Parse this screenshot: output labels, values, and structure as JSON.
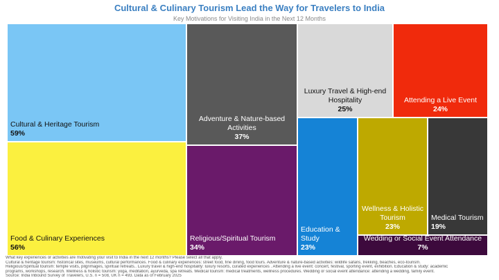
{
  "chart_data": {
    "type": "treemap",
    "title": "Cultural & Culinary Tourism Lead the Way for Travelers to India",
    "subtitle": "Key Motivations for Visiting India in the Next 12 Months",
    "items": [
      {
        "name": "Cultural & Heritage Tourism",
        "value": 59,
        "label": "59%",
        "color": "#7ac6f5",
        "text_color": "#111111"
      },
      {
        "name": "Food & Culinary Experiences",
        "value": 56,
        "label": "56%",
        "color": "#fbf03f",
        "text_color": "#111111"
      },
      {
        "name": "Adventure & Nature-based Activities",
        "value": 37,
        "label": "37%",
        "color": "#595959",
        "text_color": "#ffffff"
      },
      {
        "name": "Religious/Spiritual Tourism",
        "value": 34,
        "label": "34%",
        "color": "#6a1a6a",
        "text_color": "#ffffff"
      },
      {
        "name": "Luxury Travel & High-end Hospitality",
        "value": 25,
        "label": "25%",
        "color": "#d9d9d9",
        "text_color": "#111111"
      },
      {
        "name": "Attending a Live Event",
        "value": 24,
        "label": "24%",
        "color": "#f02a0c",
        "text_color": "#ffffff"
      },
      {
        "name": "Education & Study",
        "value": 23,
        "label": "23%",
        "color": "#1583d6",
        "text_color": "#ffffff"
      },
      {
        "name": "Wellness & Holistic Tourism",
        "value": 23,
        "label": "23%",
        "color": "#bea900",
        "text_color": "#ffffff"
      },
      {
        "name": "Medical Tourism",
        "value": 19,
        "label": "19%",
        "color": "#383838",
        "text_color": "#ffffff"
      },
      {
        "name": "Wedding or Social Event Attendance",
        "value": 7,
        "label": "7%",
        "color": "#3d0a3d",
        "text_color": "#ffffff"
      }
    ]
  },
  "footnotes": [
    "What key experiences or activities are motivating your visit to India in the next 12 months?  Please select all that apply.",
    "Cultural & heritage tourism: historical sites, museums, cultural performances. Food & culinary experiences: street food, fine dining, food tours. Adventure & nature-based activities: wildlife safaris, trekking, beaches, eco-tourism.",
    "Religious/Spiritual tourism: temple visits, pilgrimages, spiritual retreats.. Luxury travel & high-end hospitality: luxury resorts, curated experiences . Attending a live event: concert, festival, sporting event, exhibition. Education & study: academic",
    "programs, workshops, research. Wellness & holistic tourism: yoga, meditation, ayurveda, spa retreats. Medical tourism: medical treatments, wellness procedures. Wedding or social event attendance: attending a wedding, family event.",
    "Source: India Inbound Survey of Travelers, U.S. n = 508, UK n = 493. Data as of February 2025"
  ]
}
